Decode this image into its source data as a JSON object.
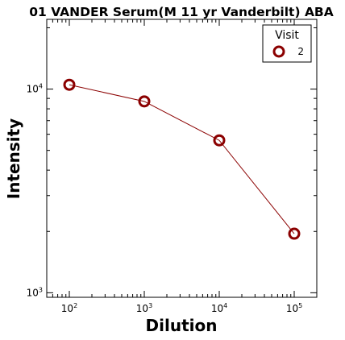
{
  "chart_data": {
    "type": "line",
    "title": "01 VANDER Serum(M 11 yr Vanderbilt) ABA",
    "xlabel": "Dilution",
    "ylabel": "Intensity",
    "x_scale": "log",
    "y_scale": "log",
    "xlim": [
      50,
      200000
    ],
    "ylim": [
      950,
      22000
    ],
    "x_ticks": [
      {
        "base": "10",
        "exp": "2",
        "value": 100
      },
      {
        "base": "10",
        "exp": "3",
        "value": 1000
      },
      {
        "base": "10",
        "exp": "4",
        "value": 10000
      },
      {
        "base": "10",
        "exp": "5",
        "value": 100000
      }
    ],
    "y_ticks": [
      {
        "base": "10",
        "exp": "3",
        "value": 1000
      },
      {
        "base": "10",
        "exp": "4",
        "value": 10000
      }
    ],
    "grid": false,
    "legend": {
      "title": "Visit",
      "placement": "top-right"
    },
    "series": [
      {
        "name": "2",
        "color": "#8b0000",
        "x": [
          100,
          1000,
          10000,
          100000
        ],
        "y": [
          10500,
          8700,
          5600,
          1950
        ]
      }
    ]
  }
}
